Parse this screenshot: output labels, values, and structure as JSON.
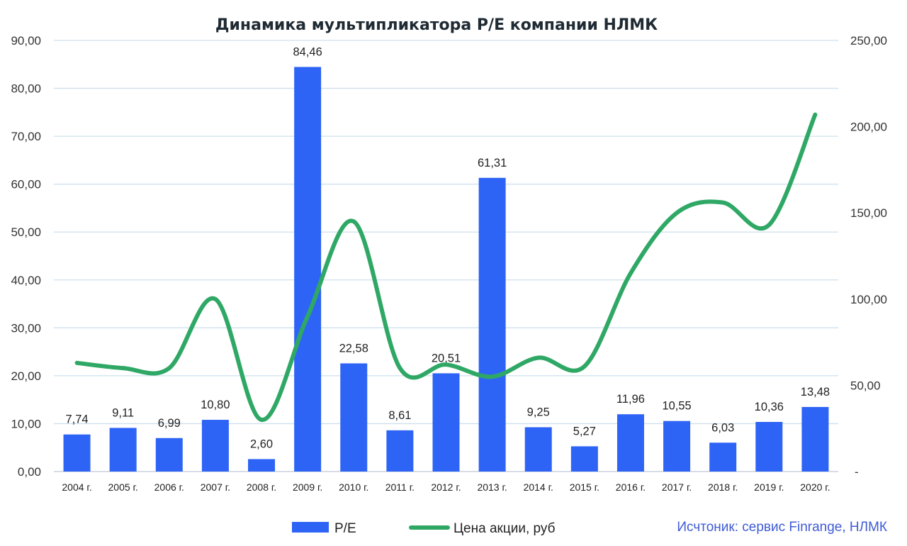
{
  "chart_data": {
    "type": "bar+line",
    "title": "Динамика мультипликатора P/E компании НЛМК",
    "categories": [
      "2004 г.",
      "2005 г.",
      "2006 г.",
      "2007 г.",
      "2008 г.",
      "2009 г.",
      "2010 г.",
      "2011 г.",
      "2012 г.",
      "2013 г.",
      "2014 г.",
      "2015 г.",
      "2016 г.",
      "2017 г.",
      "2018 г.",
      "2019 г.",
      "2020 г."
    ],
    "series": [
      {
        "name": "P/E",
        "type": "bar",
        "axis": "left",
        "color": "#2e64f5",
        "values": [
          7.74,
          9.11,
          6.99,
          10.8,
          2.6,
          84.46,
          22.58,
          8.61,
          20.51,
          61.31,
          9.25,
          5.27,
          11.96,
          10.55,
          6.03,
          10.36,
          13.48
        ],
        "labels": [
          "7,74",
          "9,11",
          "6,99",
          "10,80",
          "2,60",
          "84,46",
          "22,58",
          "8,61",
          "20,51",
          "61,31",
          "9,25",
          "5,27",
          "11,96",
          "10,55",
          "6,03",
          "10,36",
          "13,48"
        ]
      },
      {
        "name": "Цена акции, руб",
        "type": "line",
        "axis": "right",
        "color": "#2fa866",
        "values": [
          63,
          60,
          60,
          100,
          30,
          90,
          145,
          60,
          62,
          55,
          66,
          61,
          115,
          150,
          156,
          143,
          207
        ]
      }
    ],
    "y_left": {
      "min": 0,
      "max": 90,
      "step": 10,
      "tick_labels": [
        "0,00",
        "10,00",
        "20,00",
        "30,00",
        "40,00",
        "50,00",
        "60,00",
        "70,00",
        "80,00",
        "90,00"
      ]
    },
    "y_right": {
      "min": 0,
      "max": 250,
      "step": 50,
      "tick_labels": [
        "-",
        "50,00",
        "100,00",
        "150,00",
        "200,00",
        "250,00"
      ]
    },
    "grid": true,
    "legend_position": "bottom-center"
  },
  "source_note": "Исчтоник: сервис Finrange, НЛМК"
}
